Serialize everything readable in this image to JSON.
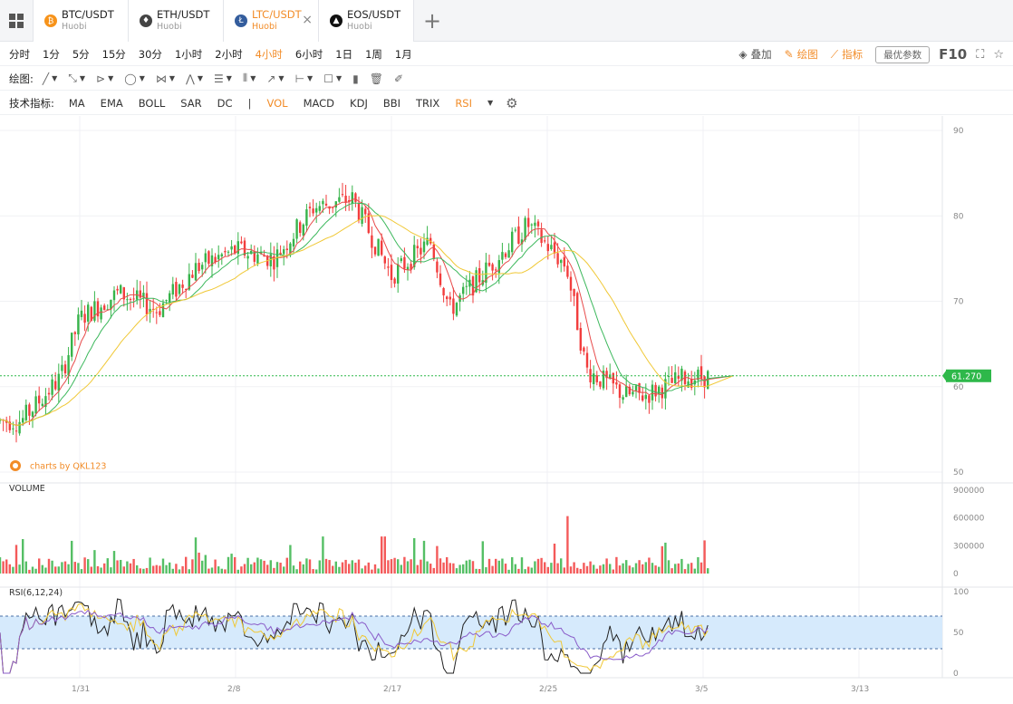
{
  "tabs": [
    {
      "symbol": "BTC/USDT",
      "exchange": "Huobi",
      "icon": "bitcoin-icon",
      "color": "#f7931a",
      "glyph": "₿"
    },
    {
      "symbol": "ETH/USDT",
      "exchange": "Huobi",
      "icon": "ethereum-icon",
      "color": "#444444",
      "glyph": "♦"
    },
    {
      "symbol": "LTC/USDT",
      "exchange": "Huobi",
      "icon": "litecoin-icon",
      "color": "#345d9d",
      "glyph": "Ł"
    },
    {
      "symbol": "EOS/USDT",
      "exchange": "Huobi",
      "icon": "eos-icon",
      "color": "#111111",
      "glyph": "▲"
    }
  ],
  "active_tab": 2,
  "periods": [
    "分时",
    "1分",
    "5分",
    "15分",
    "30分",
    "1小时",
    "2小时",
    "4小时",
    "6小时",
    "1日",
    "1周",
    "1月"
  ],
  "active_period": "4小时",
  "toolbar": {
    "overlay": "叠加",
    "draw": "绘图",
    "indicator": "指标",
    "best_params": "最优参数",
    "f10": "F10"
  },
  "drawing": {
    "label": "绘图:",
    "tools": [
      "line-tool-icon",
      "ray-tool-icon",
      "channel-tool-icon",
      "shape-tool-icon",
      "fib-tool-icon",
      "pattern-tool-icon",
      "levels-tool-icon",
      "grid-tool-icon",
      "arrow-tool-icon",
      "measure-tool-icon",
      "comment-tool-icon",
      "bar-pattern-icon",
      "trash-icon",
      "brush-icon"
    ]
  },
  "indicators": {
    "label": "技术指标:",
    "main": [
      "MA",
      "EMA",
      "BOLL",
      "SAR",
      "DC"
    ],
    "separator": "|",
    "sub": [
      "VOL",
      "MACD",
      "KDJ",
      "BBI",
      "TRIX",
      "RSI"
    ],
    "active": [
      "VOL",
      "RSI"
    ]
  },
  "chart": {
    "price_ticks": [
      "90",
      "80",
      "70",
      "60",
      "50"
    ],
    "current_price": "61.270",
    "watermark": "charts by QKL123",
    "volume_title": "VOLUME",
    "volume_ticks": [
      "900000",
      "600000",
      "300000",
      "0"
    ],
    "rsi_title": "RSI(6,12,24)",
    "rsi_ticks": [
      "100",
      "50",
      "0"
    ],
    "date_ticks": [
      "1/31",
      "2/8",
      "2/17",
      "2/25",
      "3/5",
      "3/13"
    ],
    "colors": {
      "up": "#37b44a",
      "down": "#f23d3d",
      "ma_fast": "#e84b4b",
      "ma_mid": "#3cb85c",
      "ma_slow": "#f0c836",
      "rsi_band": "#d6eafc",
      "price_tag": "#2eb84a",
      "accent": "#f28c28"
    }
  },
  "chart_data": {
    "type": "candlestick",
    "price_range": [
      50,
      90
    ],
    "current_price": 61.27,
    "volume_range": [
      0,
      900000
    ],
    "rsi_range": [
      0,
      100
    ],
    "rsi_band": [
      30,
      70
    ],
    "price_keypoints": [
      {
        "date": "1/28",
        "close": 56
      },
      {
        "date": "1/30",
        "close": 61
      },
      {
        "date": "1/31",
        "close": 68
      },
      {
        "date": "2/2",
        "close": 71
      },
      {
        "date": "2/4",
        "close": 69
      },
      {
        "date": "2/6",
        "close": 74
      },
      {
        "date": "2/8",
        "close": 76
      },
      {
        "date": "2/10",
        "close": 75
      },
      {
        "date": "2/12",
        "close": 81
      },
      {
        "date": "2/14",
        "close": 82
      },
      {
        "date": "2/16",
        "close": 73
      },
      {
        "date": "2/18",
        "close": 77
      },
      {
        "date": "2/19",
        "close": 69
      },
      {
        "date": "2/21",
        "close": 74
      },
      {
        "date": "2/23",
        "close": 79
      },
      {
        "date": "2/25",
        "close": 74
      },
      {
        "date": "2/26",
        "close": 62
      },
      {
        "date": "2/28",
        "close": 59
      },
      {
        "date": "3/1",
        "close": 59
      },
      {
        "date": "3/3",
        "close": 61
      },
      {
        "date": "3/5",
        "close": 61.27
      }
    ]
  }
}
